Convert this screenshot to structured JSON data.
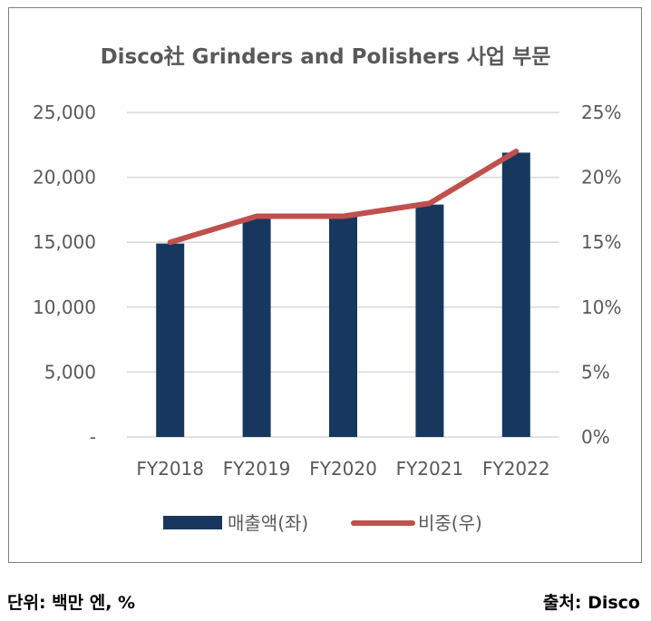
{
  "chart_data": {
    "type": "bar+line",
    "title": "Disco社 Grinders and Polishers 사업 부문",
    "categories": [
      "FY2018",
      "FY2019",
      "FY2020",
      "FY2021",
      "FY2022"
    ],
    "series": [
      {
        "name": "매출액(좌)",
        "type": "bar",
        "axis": "left",
        "color": "#17375e",
        "values": [
          14900,
          16800,
          17000,
          17900,
          21900
        ]
      },
      {
        "name": "비중(우)",
        "type": "line",
        "axis": "right",
        "color": "#c0504d",
        "values": [
          15,
          17,
          17,
          18,
          22
        ]
      }
    ],
    "y_left": {
      "ylim": [
        0,
        25000
      ],
      "ticks": [
        "-",
        "5,000",
        "10,000",
        "15,000",
        "20,000",
        "25,000"
      ]
    },
    "y_right": {
      "ylim": [
        0,
        25
      ],
      "ticks": [
        "0%",
        "5%",
        "10%",
        "15%",
        "20%",
        "25%"
      ]
    },
    "grid": true,
    "legend_placement": "bottom"
  },
  "footer": {
    "unit": "단위: 백만 엔, %",
    "source": "출처: Disco"
  }
}
